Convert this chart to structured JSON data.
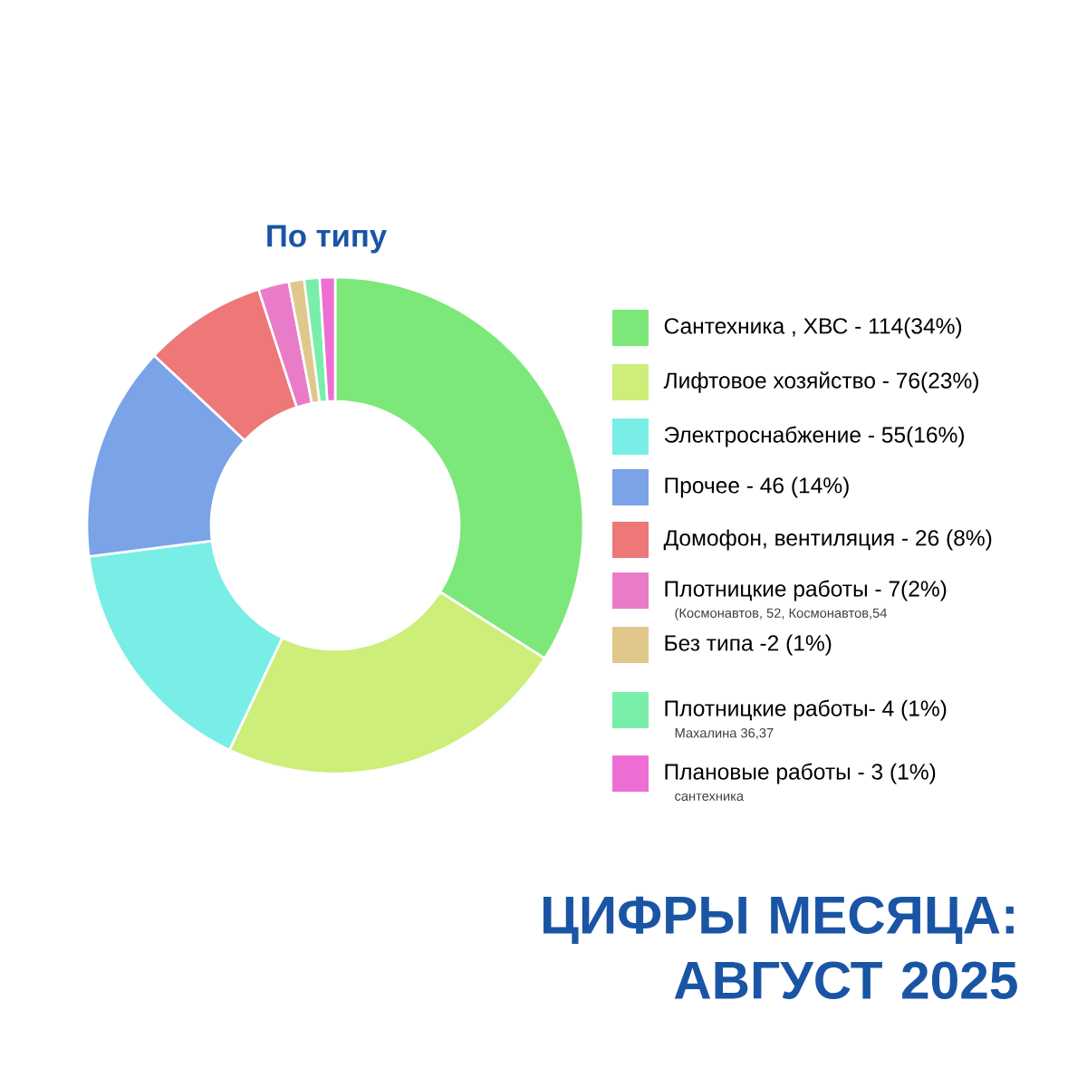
{
  "chart_data": {
    "type": "donut",
    "title": "ЦИФРЫ МЕСЯЦА: АВГУСТ 2025",
    "subtitle": "По типу",
    "categories": [
      "Сантехника , ХВС - 114(34%)",
      "Лифтовое хозяйство - 76(23%)",
      "Электроснабжение - 55(16%)",
      "Прочее - 46 (14%)",
      "Домофон, вентиляция - 26 (8%)",
      "Плотницкие работы - 7(2%)",
      "Без типа -2 (1%)",
      "Плотницкие работы- 4 (1%)",
      "Плановые работы - 3 (1%)"
    ],
    "values": [
      34,
      23,
      16,
      14,
      8,
      2,
      1,
      1,
      1
    ],
    "colors": [
      "#7de87a",
      "#cdee78",
      "#78eee6",
      "#7aa3e8",
      "#ee7777",
      "#e97cc8",
      "#e0c78c",
      "#78eeaa",
      "#ee6ed4"
    ],
    "legend": "right",
    "annotations": [
      "(Космонавтов, 52, Космонавтов,54",
      "Махалина 36,37",
      "сантехника"
    ]
  }
}
